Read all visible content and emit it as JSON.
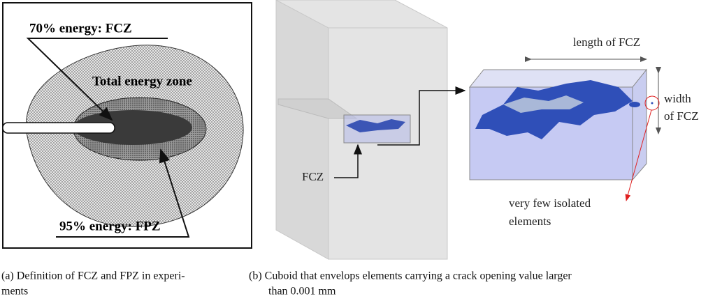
{
  "panel_a": {
    "labels": [
      "70% energy: FCZ",
      "Total energy zone",
      "95% energy: FPZ"
    ],
    "caption": [
      "(a)  Definition of FCZ and FPZ in experi-",
      "ments"
    ]
  },
  "panel_b": {
    "length_label": "length of FCZ",
    "width_label": [
      "width",
      "of FCZ"
    ],
    "fcz_label": "FCZ",
    "isolated_label": [
      "very few isolated",
      "elements"
    ],
    "caption": [
      "(b)  Cuboid that envelops elements carrying a crack opening value larger",
      "than 0.001 mm"
    ]
  }
}
